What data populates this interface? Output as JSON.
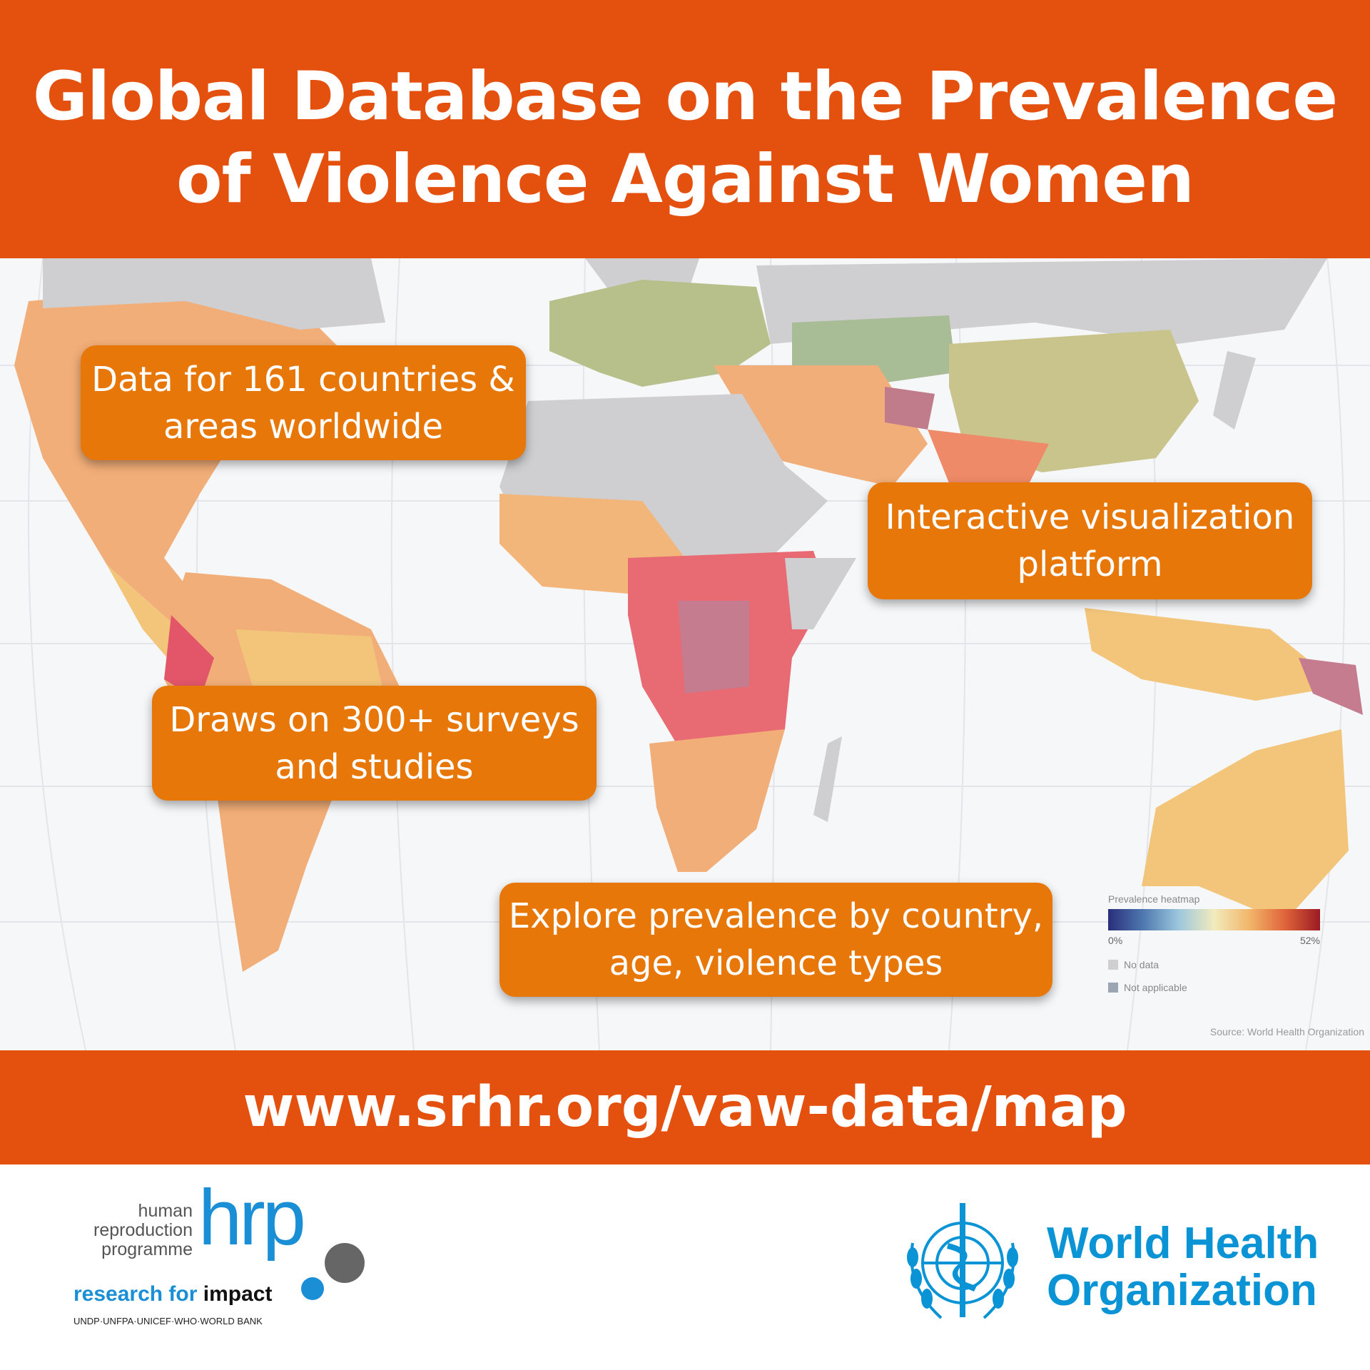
{
  "header": {
    "title_line1": "Global Database on the Prevalence",
    "title_line2": "of Violence Against Women"
  },
  "callouts": [
    {
      "line1": "Data for 161 countries &",
      "line2": "areas worldwide"
    },
    {
      "line1": "Interactive visualization",
      "line2": "platform"
    },
    {
      "line1": "Draws on 300+ surveys",
      "line2": "and studies"
    },
    {
      "line1": "Explore prevalence by country,",
      "line2": "age, violence types"
    }
  ],
  "legend": {
    "title": "Prevalence heatmap",
    "min_label": "0%",
    "max_label": "52%",
    "no_data": "No data",
    "not_applicable": "Not applicable",
    "colors": {
      "low": "#2a2f7a",
      "mid": "#f1ebbd",
      "high": "#9b1b23",
      "no_data": "#cfcfd2",
      "not_applicable": "#9aa6b4"
    }
  },
  "source": "Source: World Health Organization",
  "url": "www.srhr.org/vaw-data/map",
  "logos": {
    "hrp": {
      "line1": "human",
      "line2": "reproduction",
      "line3": "programme",
      "mark": "hrp",
      "tagline_a": "research for",
      "tagline_b": "impact",
      "partners": "UNDP·UNFPA·UNICEF·WHO·WORLD BANK"
    },
    "who": {
      "line1": "World Health",
      "line2": "Organization"
    }
  },
  "colors": {
    "brand_orange": "#E4510F",
    "callout_orange": "#E8770A",
    "who_blue": "#0A93D5",
    "hrp_blue": "#1B8FD6"
  }
}
